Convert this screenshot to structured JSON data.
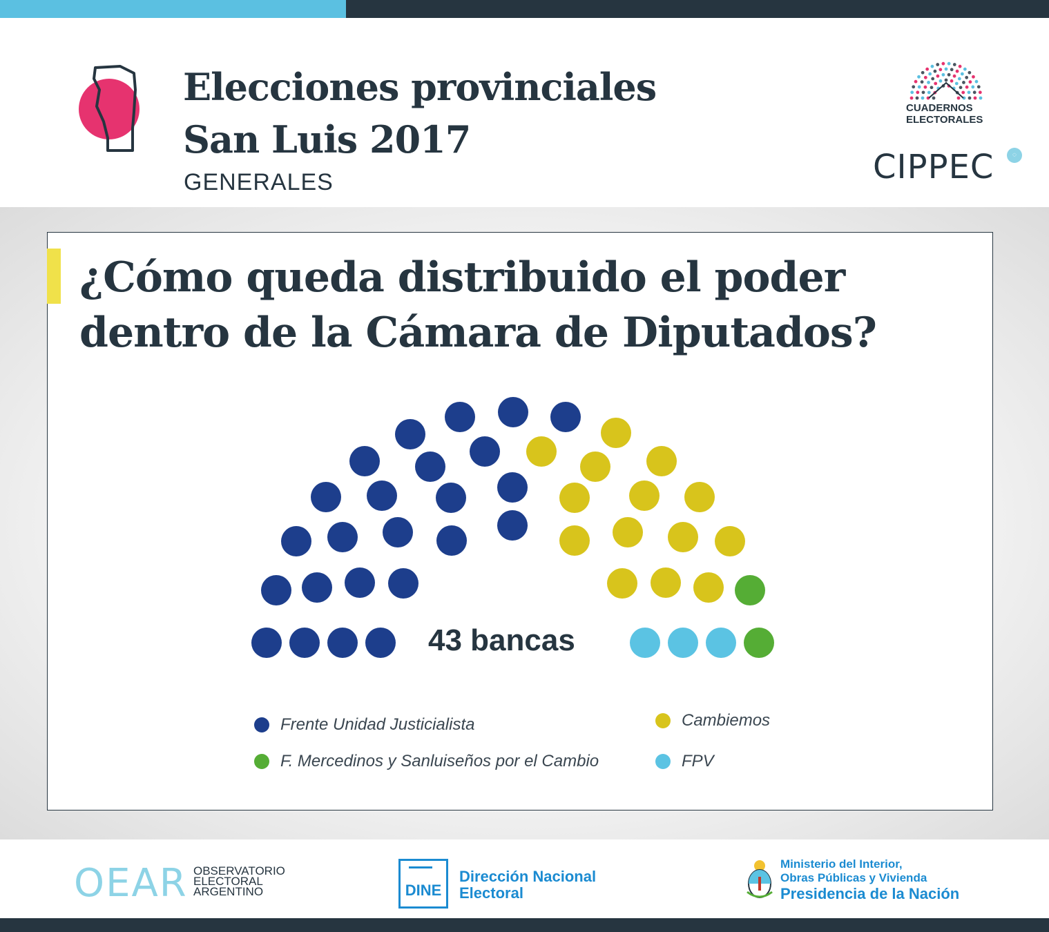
{
  "header": {
    "title_line1": "Elecciones provinciales",
    "title_line2": "San Luis 2017",
    "subtitle": "GENERALES",
    "ce_line1": "CUADERNOS",
    "ce_line2": "ELECTORALES",
    "cippec": "CIPPEC"
  },
  "card": {
    "question_line1": "¿Cómo queda distribuido el poder",
    "question_line2": "dentro de la Cámara de Diputados?"
  },
  "chart_data": {
    "type": "parliament",
    "title": "¿Cómo queda distribuido el poder dentro de la Cámara de Diputados?",
    "total_label": "43 bancas",
    "total_seats": 43,
    "series": [
      {
        "name": "Frente Unidad Justicialista",
        "seats": 24,
        "color": "#1d3e8c"
      },
      {
        "name": "Cambiemos",
        "seats": 14,
        "color": "#d8c41c"
      },
      {
        "name": "F. Mercedinos y Sanluiseños por el Cambio",
        "seats": 2,
        "color": "#55ad35"
      },
      {
        "name": "FPV",
        "seats": 3,
        "color": "#5bc3e3"
      }
    ],
    "legend": {
      "placement": "bottom"
    }
  },
  "footer": {
    "oear_mark": "OEAR",
    "oear_line1": "OBSERVATORIO",
    "oear_line2": "ELECTORAL",
    "oear_line3": "ARGENTINO",
    "dine_box": "DINE",
    "dine_line1": "Dirección Nacional",
    "dine_line2": "Electoral",
    "min_line1": "Ministerio del Interior,",
    "min_line2": "Obras Públicas y Vivienda",
    "min_line3": "Presidencia de la Nación"
  },
  "colors": {
    "dark": "#263540",
    "accent_blue": "#5bc0e1",
    "accent_pink": "#e6336f",
    "accent_yellow": "#f0e14a",
    "gov_blue": "#1b8bd1"
  }
}
